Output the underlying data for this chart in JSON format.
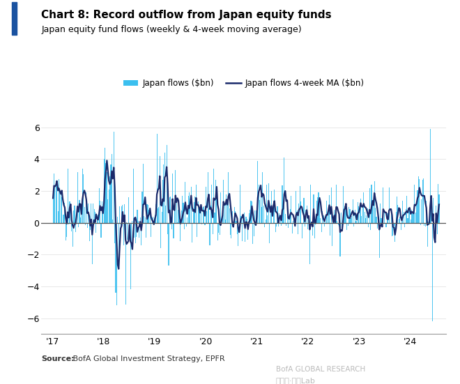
{
  "title": "Chart 8: Record outflow from Japan equity funds",
  "subtitle": "Japan equity fund flows (weekly & 4-week moving average)",
  "source_bold": "Source:",
  "source_rest": " BofA Global Investment Strategy, EPFR",
  "legend_bar": "Japan flows ($bn)",
  "legend_line": "Japan flows 4-week MA ($bn)",
  "bar_color": "#3BBFEF",
  "line_color": "#1B2A6B",
  "background_color": "#FFFFFF",
  "ylim": [
    -7,
    7
  ],
  "yticks": [
    -6,
    -4,
    -2,
    0,
    2,
    4,
    6
  ],
  "title_color": "#000000",
  "subtitle_color": "#000000",
  "accent_color": "#1A52A0",
  "zero_line_color": "#555555",
  "bofa_text": "BofA GLOBAL RESEARCH",
  "wechat_text": "公众号·边际Lab"
}
